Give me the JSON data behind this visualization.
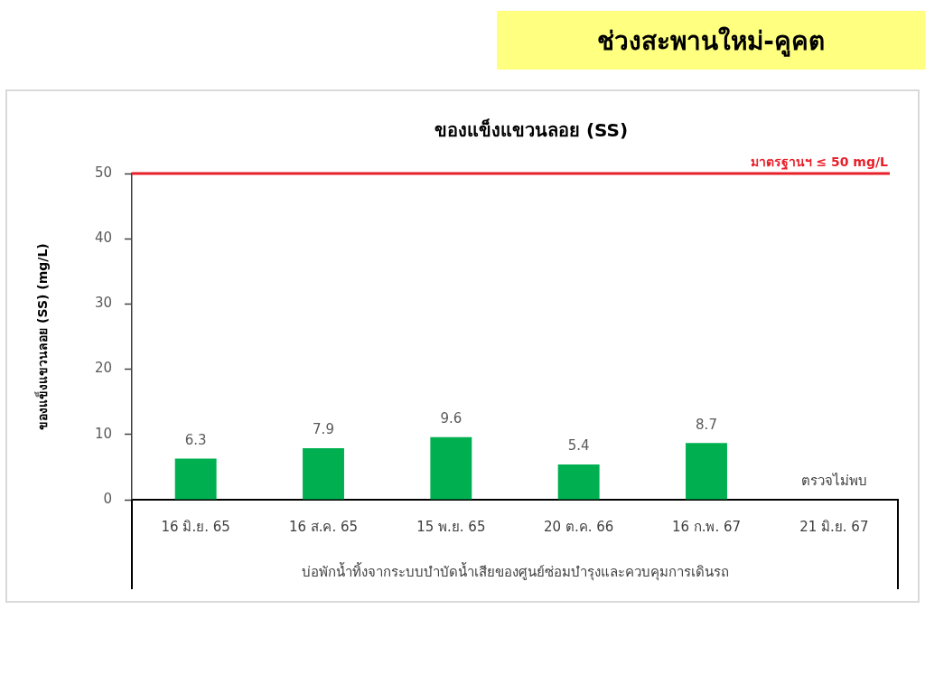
{
  "chart_data": {
    "type": "bar",
    "title": "ช่วงสะพานใหม่-คูคต",
    "subtitle": "ของแข็งแขวนลอย (SS)",
    "xlabel": "บ่อพักน้ำทิ้งจากระบบบำบัดน้ำเสียของศูนย์ซ่อมบำรุงและควบคุมการเดินรถ",
    "ylabel": "ของแข็งแขวนลอย (SS) (mg/L)",
    "categories": [
      "16 มิ.ย. 65",
      "16 ส.ค. 65",
      "15 พ.ย. 65",
      "20 ต.ค. 66",
      "16 ก.พ. 67",
      "21 มิ.ย. 67"
    ],
    "values": [
      6.3,
      7.9,
      9.6,
      5.4,
      8.7,
      null
    ],
    "color": "#00b050",
    "ylim": [
      0,
      50
    ],
    "yticks": [
      0,
      10,
      20,
      30,
      40,
      50
    ],
    "data_labels": true,
    "ref_lines": [
      {
        "axis": "y",
        "value": 50,
        "label": "มาตรฐานฯ ≤ 50 mg/L",
        "color": "#e8202a"
      }
    ],
    "annotations": [
      "ตรวจไม่พบ"
    ]
  }
}
